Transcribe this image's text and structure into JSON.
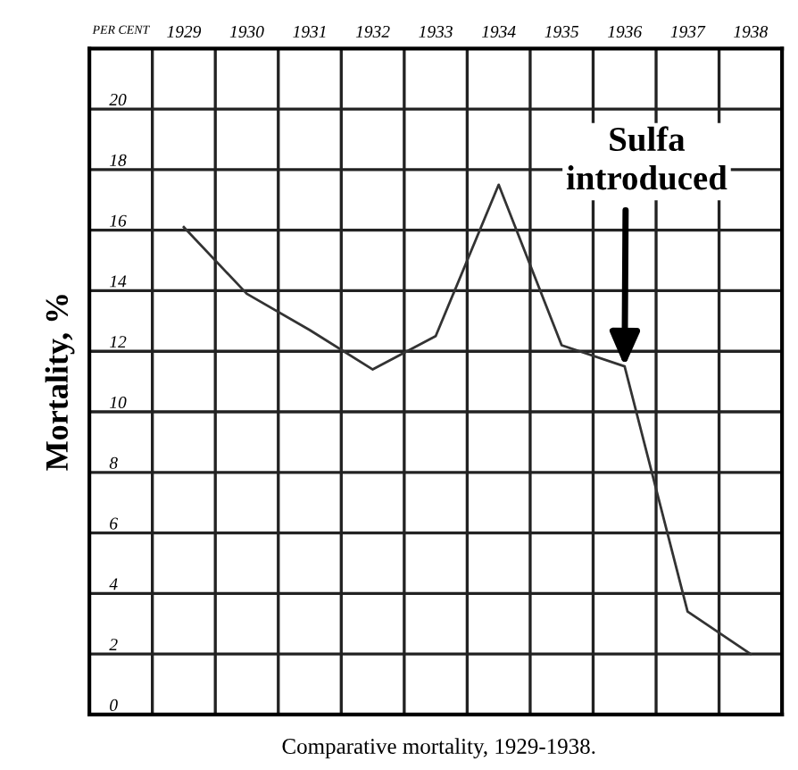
{
  "chart_data": {
    "type": "line",
    "ylabel": "Mortality, %",
    "categories": [
      "1929",
      "1930",
      "1931",
      "1932",
      "1933",
      "1934",
      "1935",
      "1936",
      "1937",
      "1938"
    ],
    "series": [
      {
        "color": "#333333",
        "values": [
          16.1,
          13.9,
          12.7,
          11.4,
          12.5,
          17.5,
          12.2,
          11.5,
          3.4,
          2.0
        ]
      }
    ],
    "ylim": [
      0,
      22
    ],
    "yticks": [
      0,
      2,
      4,
      6,
      8,
      10,
      12,
      14,
      16,
      18,
      20
    ],
    "grid": true,
    "marker": "none",
    "line_style": "solid",
    "annotations": [
      "PER CENT",
      {
        "text": "Sulfa introduced",
        "x": "1936",
        "y": 11.5
      },
      "Comparative mortality, 1929-1938."
    ]
  }
}
